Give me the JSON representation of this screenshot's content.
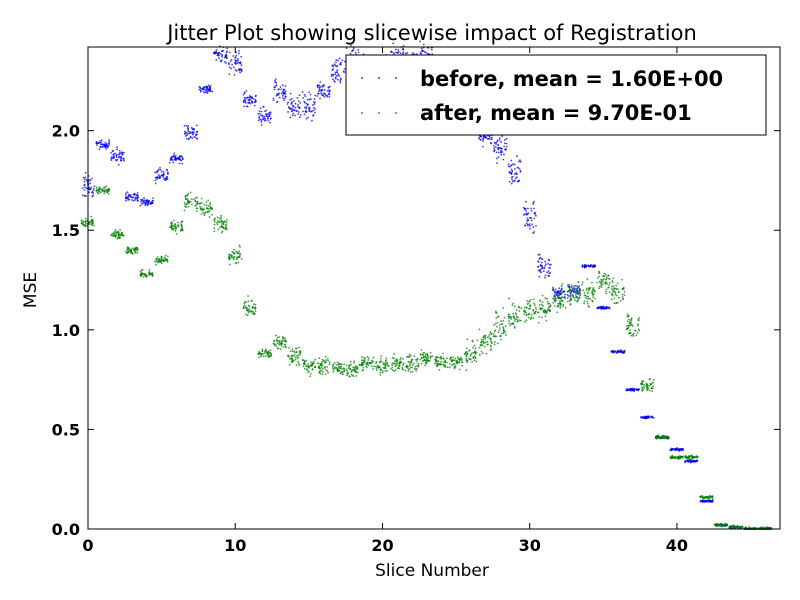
{
  "chart_data": {
    "type": "scatter",
    "title": "Jitter Plot showing slicewise impact of Registration",
    "xlabel": "Slice Number",
    "ylabel": "MSE",
    "xlim": [
      0,
      47
    ],
    "ylim": [
      0,
      2.42
    ],
    "xticks": [
      "0",
      "10",
      "20",
      "30",
      "40"
    ],
    "yticks": [
      "0.0",
      "0.5",
      "1.0",
      "1.5",
      "2.0"
    ],
    "grid": false,
    "legend_position": "top-right",
    "x": [
      0,
      1,
      2,
      3,
      4,
      5,
      6,
      7,
      8,
      9,
      10,
      11,
      12,
      13,
      14,
      15,
      16,
      17,
      18,
      19,
      20,
      21,
      22,
      23,
      24,
      25,
      26,
      27,
      28,
      29,
      30,
      31,
      32,
      33,
      34,
      35,
      36,
      37,
      38,
      39,
      40,
      41,
      42,
      43,
      44,
      45,
      46
    ],
    "series": [
      {
        "name": "before, mean = 1.60E+00",
        "color": "#0000ff",
        "values": [
          1.72,
          1.93,
          1.87,
          1.67,
          1.64,
          1.78,
          1.86,
          1.99,
          2.21,
          2.38,
          2.33,
          2.15,
          2.07,
          2.2,
          2.12,
          2.12,
          2.2,
          2.3,
          2.36,
          2.34,
          2.33,
          2.38,
          2.34,
          2.38,
          2.28,
          2.2,
          2.1,
          1.97,
          1.91,
          1.8,
          1.58,
          1.32,
          1.18,
          1.19,
          1.32,
          1.11,
          0.89,
          0.7,
          0.56,
          0.46,
          0.4,
          0.34,
          0.14,
          0.02,
          0.01,
          0.0,
          0.0
        ],
        "spread": [
          0.03,
          0.01,
          0.02,
          0.01,
          0.01,
          0.02,
          0.01,
          0.02,
          0.01,
          0.02,
          0.03,
          0.02,
          0.02,
          0.03,
          0.03,
          0.03,
          0.02,
          0.03,
          0.03,
          0.03,
          0.03,
          0.03,
          0.03,
          0.03,
          0.03,
          0.03,
          0.03,
          0.02,
          0.03,
          0.03,
          0.04,
          0.03,
          0.02,
          0.02,
          0.003,
          0.003,
          0.003,
          0.003,
          0.003,
          0.003,
          0.003,
          0.003,
          0.003,
          0.003,
          0.003,
          0.003,
          0.003
        ]
      },
      {
        "name": "after, mean = 9.70E-01",
        "color": "#008000",
        "values": [
          1.54,
          1.7,
          1.48,
          1.4,
          1.28,
          1.35,
          1.52,
          1.64,
          1.61,
          1.53,
          1.37,
          1.11,
          0.88,
          0.94,
          0.87,
          0.82,
          0.82,
          0.81,
          0.8,
          0.83,
          0.82,
          0.83,
          0.83,
          0.86,
          0.84,
          0.84,
          0.88,
          0.94,
          1.02,
          1.07,
          1.1,
          1.11,
          1.14,
          1.17,
          1.19,
          1.24,
          1.19,
          1.02,
          0.72,
          0.46,
          0.36,
          0.36,
          0.16,
          0.02,
          0.01,
          0.0,
          0.0
        ],
        "spread": [
          0.01,
          0.01,
          0.01,
          0.01,
          0.01,
          0.01,
          0.02,
          0.02,
          0.02,
          0.02,
          0.02,
          0.02,
          0.01,
          0.02,
          0.02,
          0.02,
          0.02,
          0.02,
          0.02,
          0.02,
          0.02,
          0.02,
          0.02,
          0.02,
          0.02,
          0.02,
          0.03,
          0.03,
          0.04,
          0.03,
          0.03,
          0.03,
          0.03,
          0.03,
          0.03,
          0.03,
          0.03,
          0.03,
          0.02,
          0.005,
          0.004,
          0.004,
          0.004,
          0.004,
          0.004,
          0.004,
          0.004
        ]
      }
    ]
  }
}
